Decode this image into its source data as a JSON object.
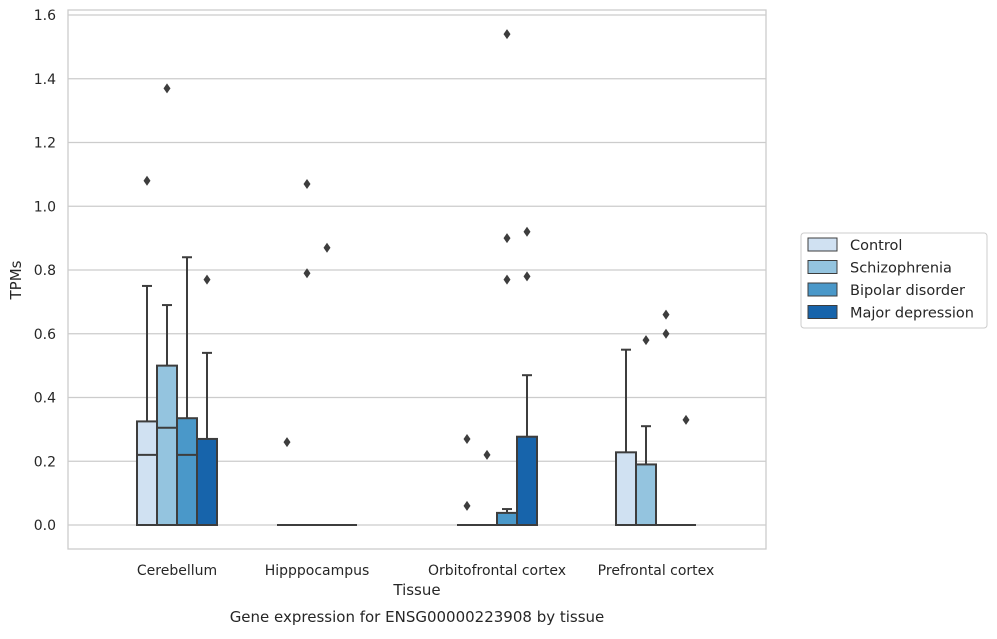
{
  "chart_data": {
    "type": "box",
    "title": "",
    "xlabel": "Tissue",
    "ylabel": "TPMs",
    "caption": "Gene expression for ENSG00000223908 by tissue",
    "ylim": [
      -0.075,
      1.62
    ],
    "yticks": [
      "0.0",
      "0.2",
      "0.4",
      "0.6",
      "0.8",
      "1.0",
      "1.2",
      "1.4",
      "1.6"
    ],
    "grid": "horizontal",
    "legend_position": "right",
    "categories": [
      "Cerebellum",
      "Hipppocampus",
      "Orbitofrontal cortex",
      "Prefrontal cortex"
    ],
    "series": [
      {
        "name": "Control",
        "color": "#d0e1f2",
        "boxes": [
          {
            "category": "Cerebellum",
            "q1": 0.0,
            "median": 0.22,
            "q3": 0.325,
            "whisker_low": 0.0,
            "whisker_high": 0.75,
            "outliers": [
              1.08
            ]
          },
          {
            "category": "Hipppocampus",
            "q1": 0.0,
            "median": 0.0,
            "q3": 0.0,
            "whisker_low": 0.0,
            "whisker_high": 0.0,
            "outliers": [
              0.26
            ]
          },
          {
            "category": "Orbitofrontal cortex",
            "q1": 0.0,
            "median": 0.0,
            "q3": 0.0,
            "whisker_low": 0.0,
            "whisker_high": 0.0,
            "outliers": [
              0.27,
              0.06
            ]
          },
          {
            "category": "Prefrontal cortex",
            "q1": 0.0,
            "median": 0.0,
            "q3": 0.228,
            "whisker_low": 0.0,
            "whisker_high": 0.55,
            "outliers": []
          }
        ]
      },
      {
        "name": "Schizophrenia",
        "color": "#94c4df",
        "boxes": [
          {
            "category": "Cerebellum",
            "q1": 0.0,
            "median": 0.305,
            "q3": 0.5,
            "whisker_low": 0.0,
            "whisker_high": 0.69,
            "outliers": [
              1.37
            ]
          },
          {
            "category": "Hipppocampus",
            "q1": 0.0,
            "median": 0.0,
            "q3": 0.0,
            "whisker_low": 0.0,
            "whisker_high": 0.0,
            "outliers": [
              1.07,
              0.79
            ]
          },
          {
            "category": "Orbitofrontal cortex",
            "q1": 0.0,
            "median": 0.0,
            "q3": 0.0,
            "whisker_low": 0.0,
            "whisker_high": 0.0,
            "outliers": [
              0.22
            ]
          },
          {
            "category": "Prefrontal cortex",
            "q1": 0.0,
            "median": 0.0,
            "q3": 0.19,
            "whisker_low": 0.0,
            "whisker_high": 0.31,
            "outliers": [
              0.58
            ]
          }
        ]
      },
      {
        "name": "Bipolar disorder",
        "color": "#4a98c9",
        "boxes": [
          {
            "category": "Cerebellum",
            "q1": 0.0,
            "median": 0.22,
            "q3": 0.335,
            "whisker_low": 0.0,
            "whisker_high": 0.84,
            "outliers": []
          },
          {
            "category": "Hipppocampus",
            "q1": 0.0,
            "median": 0.0,
            "q3": 0.0,
            "whisker_low": 0.0,
            "whisker_high": 0.0,
            "outliers": [
              0.87
            ]
          },
          {
            "category": "Orbitofrontal cortex",
            "q1": 0.0,
            "median": 0.0,
            "q3": 0.038,
            "whisker_low": 0.0,
            "whisker_high": 0.05,
            "outliers": [
              1.54,
              0.9,
              0.77
            ]
          },
          {
            "category": "Prefrontal cortex",
            "q1": 0.0,
            "median": 0.0,
            "q3": 0.0,
            "whisker_low": 0.0,
            "whisker_high": 0.0,
            "outliers": [
              0.66,
              0.6
            ]
          }
        ]
      },
      {
        "name": "Major depression",
        "color": "#1764ab",
        "boxes": [
          {
            "category": "Cerebellum",
            "q1": 0.0,
            "median": 0.0,
            "q3": 0.27,
            "whisker_low": 0.0,
            "whisker_high": 0.54,
            "outliers": [
              0.77
            ]
          },
          {
            "category": "Hipppocampus",
            "q1": 0.0,
            "median": 0.0,
            "q3": 0.0,
            "whisker_low": 0.0,
            "whisker_high": 0.0,
            "outliers": []
          },
          {
            "category": "Orbitofrontal cortex",
            "q1": 0.0,
            "median": 0.0,
            "q3": 0.277,
            "whisker_low": 0.0,
            "whisker_high": 0.47,
            "outliers": [
              0.92,
              0.78
            ]
          },
          {
            "category": "Prefrontal cortex",
            "q1": 0.0,
            "median": 0.0,
            "q3": 0.0,
            "whisker_low": 0.0,
            "whisker_high": 0.0,
            "outliers": [
              0.33
            ]
          }
        ]
      }
    ]
  }
}
